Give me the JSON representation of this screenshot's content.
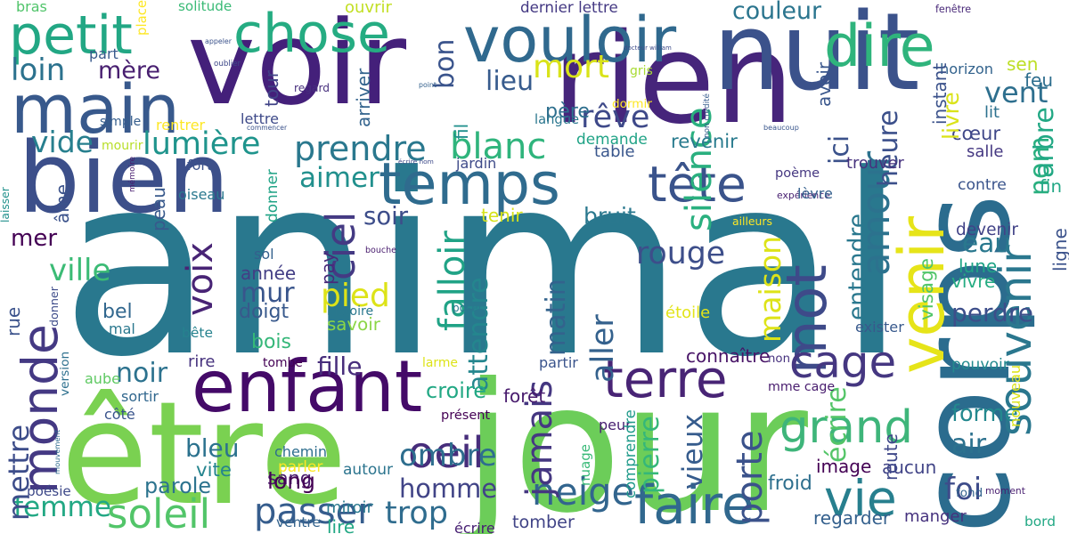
{
  "words": [
    {
      "t": "animal",
      "c": "#29788e"
    },
    {
      "t": "jour",
      "c": "#6ccd59"
    },
    {
      "t": "être",
      "c": "#7ad151"
    },
    {
      "t": "voir",
      "c": "#44207a"
    },
    {
      "t": "rien",
      "c": "#46257b"
    },
    {
      "t": "corps",
      "c": "#2b6c8e"
    },
    {
      "t": "bien",
      "c": "#3c4f8a"
    },
    {
      "t": "nuit",
      "c": "#3b528b"
    },
    {
      "t": "enfant",
      "c": "#440a68"
    },
    {
      "t": "vouloir",
      "c": "#30698e"
    },
    {
      "t": "main",
      "c": "#38598c"
    },
    {
      "t": "petit",
      "c": "#22a784"
    },
    {
      "t": "chose",
      "c": "#25ac82"
    },
    {
      "t": "temps",
      "c": "#2f6b8e"
    },
    {
      "t": "venir",
      "c": "#e6e419"
    },
    {
      "t": "mot",
      "c": "#3e4a89"
    },
    {
      "t": "faire",
      "c": "#31688e"
    },
    {
      "t": "monde",
      "c": "#443983"
    },
    {
      "t": "dire",
      "c": "#2fb47c"
    },
    {
      "t": "terre",
      "c": "#482475"
    },
    {
      "t": "cage",
      "c": "#453781"
    },
    {
      "t": "souvenir",
      "c": "#2a778e"
    },
    {
      "t": "vie",
      "c": "#277f8e"
    },
    {
      "t": "tête",
      "c": "#3a538b"
    },
    {
      "t": "grand",
      "c": "#3eb57a"
    },
    {
      "t": "soleil",
      "c": "#52c569"
    },
    {
      "t": "passer",
      "c": "#365d8d"
    },
    {
      "t": "femme",
      "c": "#22a884"
    },
    {
      "t": "neige",
      "c": "#32658e"
    },
    {
      "t": "prendre",
      "c": "#2a788e"
    },
    {
      "t": "oeil",
      "c": "#472d7b"
    },
    {
      "t": "silence",
      "c": "#2ab07f"
    },
    {
      "t": "amour",
      "c": "#2c728e"
    },
    {
      "t": "mort",
      "c": "#d9e319"
    },
    {
      "t": "rêve",
      "c": "#3e4989"
    },
    {
      "t": "lumière",
      "c": "#1f948c"
    },
    {
      "t": "couleur",
      "c": "#2b758e"
    },
    {
      "t": "blanc",
      "c": "#2fb47c"
    },
    {
      "t": "aimer",
      "c": "#21908d"
    },
    {
      "t": "heure",
      "c": "#3c508b"
    },
    {
      "t": "vent",
      "c": "#2e6f8e"
    },
    {
      "t": "falloir",
      "c": "#20a386"
    },
    {
      "t": "voix",
      "c": "#482475"
    },
    {
      "t": "pied",
      "c": "#dde318"
    },
    {
      "t": "ciel",
      "c": "#443a83"
    },
    {
      "t": "rouge",
      "c": "#3d4e8a"
    },
    {
      "t": "jamais",
      "c": "#453781"
    },
    {
      "t": "matin",
      "c": "#33638d"
    },
    {
      "t": "attendre",
      "c": "#24868e"
    },
    {
      "t": "aller",
      "c": "#34618d"
    },
    {
      "t": "porte",
      "c": "#3b528b"
    },
    {
      "t": "homme",
      "c": "#414487"
    },
    {
      "t": "ombre",
      "c": "#2e6e8e"
    },
    {
      "t": "trop",
      "c": "#2f6c8e"
    },
    {
      "t": "ville",
      "c": "#3bbb75"
    },
    {
      "t": "vide",
      "c": "#277f8e"
    },
    {
      "t": "loin",
      "c": "#2c728e"
    },
    {
      "t": "mère",
      "c": "#481f70"
    },
    {
      "t": "mer",
      "c": "#440154"
    },
    {
      "t": "mur",
      "c": "#39558c"
    },
    {
      "t": "noir",
      "c": "#2c728e"
    },
    {
      "t": "bleu",
      "c": "#2c728e"
    },
    {
      "t": "bon",
      "c": "#3a548c"
    },
    {
      "t": "lieu",
      "c": "#375b8d"
    },
    {
      "t": "père",
      "c": "#2e6f8e"
    },
    {
      "t": "ici",
      "c": "#3b528b"
    },
    {
      "t": "nom",
      "c": "#29af7f"
    },
    {
      "t": "arbre",
      "c": "#22a884"
    },
    {
      "t": "cœur",
      "c": "#3f4788"
    },
    {
      "t": "trouver",
      "c": "#46327e"
    },
    {
      "t": "eau",
      "c": "#2a788e"
    },
    {
      "t": "entendre",
      "c": "#2a788e"
    },
    {
      "t": "maison",
      "c": "#dde318"
    },
    {
      "t": "écrire",
      "c": "#54c568"
    },
    {
      "t": "forme",
      "c": "#23888e"
    },
    {
      "t": "foi",
      "c": "#3e4c8a"
    },
    {
      "t": "air",
      "c": "#2c718e"
    },
    {
      "t": "fille",
      "c": "#472d7b"
    },
    {
      "t": "pierre",
      "c": "#35b779"
    },
    {
      "t": "vieux",
      "c": "#365c8d"
    },
    {
      "t": "perdre",
      "c": "#3d4e8a"
    },
    {
      "t": "mettre",
      "c": "#3d4d8a"
    },
    {
      "t": "parole",
      "c": "#2c738e"
    },
    {
      "t": "soir",
      "c": "#3d4d8a"
    },
    {
      "t": "bel",
      "c": "#31678e"
    },
    {
      "t": "doigt",
      "c": "#38598c"
    },
    {
      "t": "année",
      "c": "#433e85"
    },
    {
      "t": "sang",
      "c": "#481a6c"
    },
    {
      "t": "long",
      "c": "#440154"
    },
    {
      "t": "bois",
      "c": "#35b779"
    },
    {
      "t": "savoir",
      "c": "#8bd646"
    },
    {
      "t": "revenir",
      "c": "#297b8e"
    },
    {
      "t": "tenir",
      "c": "#d5e21a"
    },
    {
      "t": "bruit",
      "c": "#2a788e"
    },
    {
      "t": "table",
      "c": "#39568c"
    },
    {
      "t": "demande",
      "c": "#20a386"
    },
    {
      "t": "langue",
      "c": "#2a768e"
    },
    {
      "t": "fenêtre",
      "c": "#482878"
    },
    {
      "t": "feu",
      "c": "#2e6e8e"
    },
    {
      "t": "lit",
      "c": "#2c718e"
    },
    {
      "t": "livre",
      "c": "#dae319"
    },
    {
      "t": "sen",
      "c": "#bddf26"
    },
    {
      "t": "horizon",
      "c": "#33638d"
    },
    {
      "t": "fin",
      "c": "#22a785"
    },
    {
      "t": "contre",
      "c": "#3a548c"
    },
    {
      "t": "devenir",
      "c": "#414287"
    },
    {
      "t": "lune",
      "c": "#20a386"
    },
    {
      "t": "vivre",
      "c": "#25ac82"
    },
    {
      "t": "ligne",
      "c": "#3b528b"
    },
    {
      "t": "visage",
      "c": "#52c569"
    },
    {
      "t": "exister",
      "c": "#38598c"
    },
    {
      "t": "pouvoir",
      "c": "#23898e"
    },
    {
      "t": "nouveau",
      "c": "#dde318"
    },
    {
      "t": "image",
      "c": "#440154"
    },
    {
      "t": "aucun",
      "c": "#414487"
    },
    {
      "t": "froid",
      "c": "#2e6f8e"
    },
    {
      "t": "regarder",
      "c": "#34608d"
    },
    {
      "t": "manger",
      "c": "#46327e"
    },
    {
      "t": "fond",
      "c": "#33638d"
    },
    {
      "t": "moment",
      "c": "#481f70"
    },
    {
      "t": "bord",
      "c": "#22a884"
    },
    {
      "t": "tomber",
      "c": "#414487"
    },
    {
      "t": "écrire",
      "c": "#482173"
    },
    {
      "t": "lire",
      "c": "#22a884"
    },
    {
      "t": "ventre",
      "c": "#33638d"
    },
    {
      "t": "miroir",
      "c": "#29798e"
    },
    {
      "t": "autour",
      "c": "#2b748e"
    },
    {
      "t": "parler",
      "c": "#fde725"
    },
    {
      "t": "chemin",
      "c": "#2e6e8e"
    },
    {
      "t": "vite",
      "c": "#25848e"
    },
    {
      "t": "poésie",
      "c": "#3e4989"
    },
    {
      "t": "côté",
      "c": "#3a548c"
    },
    {
      "t": "sortir",
      "c": "#31678e"
    },
    {
      "t": "aube",
      "c": "#5ec962"
    },
    {
      "t": "rire",
      "c": "#46327e"
    },
    {
      "t": "tombe",
      "c": "#440154"
    },
    {
      "t": "croire",
      "c": "#22a884"
    },
    {
      "t": "forêt",
      "c": "#481b6d"
    },
    {
      "t": "larme",
      "c": "#dde318"
    },
    {
      "t": "partir",
      "c": "#3a548c"
    },
    {
      "t": "connaître",
      "c": "#481467"
    },
    {
      "t": "non",
      "c": "#46317e"
    },
    {
      "t": "mme cage",
      "c": "#481c6e"
    },
    {
      "t": "présent",
      "c": "#440154"
    },
    {
      "t": "peur",
      "c": "#482071"
    },
    {
      "t": "nuage",
      "c": "#38b977"
    },
    {
      "t": "comprendre",
      "c": "#1f9a8a"
    },
    {
      "t": "route",
      "c": "#3f4889"
    },
    {
      "t": "étoile",
      "c": "#e2e418"
    },
    {
      "t": "poser",
      "c": "#2a788e"
    },
    {
      "t": "histoire",
      "c": "#2a788e"
    },
    {
      "t": "rue",
      "c": "#3b528b"
    },
    {
      "t": "donner",
      "c": "#3e4c8a"
    },
    {
      "t": "mal",
      "c": "#2a788e"
    },
    {
      "t": "bête",
      "c": "#26828e"
    },
    {
      "t": "version",
      "c": "#2d708e"
    },
    {
      "t": "mouvement",
      "c": "#2f6b8e"
    },
    {
      "t": "pay",
      "c": "#472a7a"
    },
    {
      "t": "sol",
      "c": "#34608d"
    },
    {
      "t": "bouche",
      "c": "#481c6e"
    },
    {
      "t": "donner",
      "c": "#20a386"
    },
    {
      "t": "oiseau",
      "c": "#2a788e"
    },
    {
      "t": "âme",
      "c": "#3b528b"
    },
    {
      "t": "mémoire",
      "c": "#481d6f"
    },
    {
      "t": "peau",
      "c": "#38598c"
    },
    {
      "t": "laisser",
      "c": "#21918c"
    },
    {
      "t": "fort",
      "c": "#3b528b"
    },
    {
      "t": "écrire nom",
      "c": "#3e4a89"
    },
    {
      "t": "jardin",
      "c": "#3e4a89"
    },
    {
      "t": "poème",
      "c": "#453781"
    },
    {
      "t": "expérience",
      "c": "#482071"
    },
    {
      "t": "lèvre",
      "c": "#34608d"
    },
    {
      "t": "ailleurs",
      "c": "#fde725"
    },
    {
      "t": "salle",
      "c": "#453882"
    },
    {
      "t": "beaucoup",
      "c": "#39568c"
    },
    {
      "t": "non crédité",
      "c": "#365d8d"
    },
    {
      "t": "instant",
      "c": "#3b528b"
    },
    {
      "t": "avoir",
      "c": "#39568c"
    },
    {
      "t": "dormir",
      "c": "#fde725"
    },
    {
      "t": "gris",
      "c": "#a8db34"
    },
    {
      "t": "docteur william",
      "c": "#3e4c8a"
    },
    {
      "t": "dernier lettre",
      "c": "#443983"
    },
    {
      "t": "ouvrir",
      "c": "#c2df23"
    },
    {
      "t": "solitude",
      "c": "#3aba76"
    },
    {
      "t": "bras",
      "c": "#50c46a"
    },
    {
      "t": "place",
      "c": "#fde725"
    },
    {
      "t": "appeler",
      "c": "#3b528b"
    },
    {
      "t": "part",
      "c": "#38598c"
    },
    {
      "t": "oublier",
      "c": "#3e4989"
    },
    {
      "t": "tour",
      "c": "#414487"
    },
    {
      "t": "regard",
      "c": "#472f7d"
    },
    {
      "t": "arriver",
      "c": "#33638d"
    },
    {
      "t": "fil",
      "c": "#21908d"
    },
    {
      "t": "point",
      "c": "#34618d"
    },
    {
      "t": "lettre",
      "c": "#3e4a89"
    },
    {
      "t": "commencer",
      "c": "#3b528b"
    },
    {
      "t": "simple",
      "c": "#355e8d"
    },
    {
      "t": "rentrer",
      "c": "#fde725"
    },
    {
      "t": "mourir",
      "c": "#b8de29"
    }
  ]
}
